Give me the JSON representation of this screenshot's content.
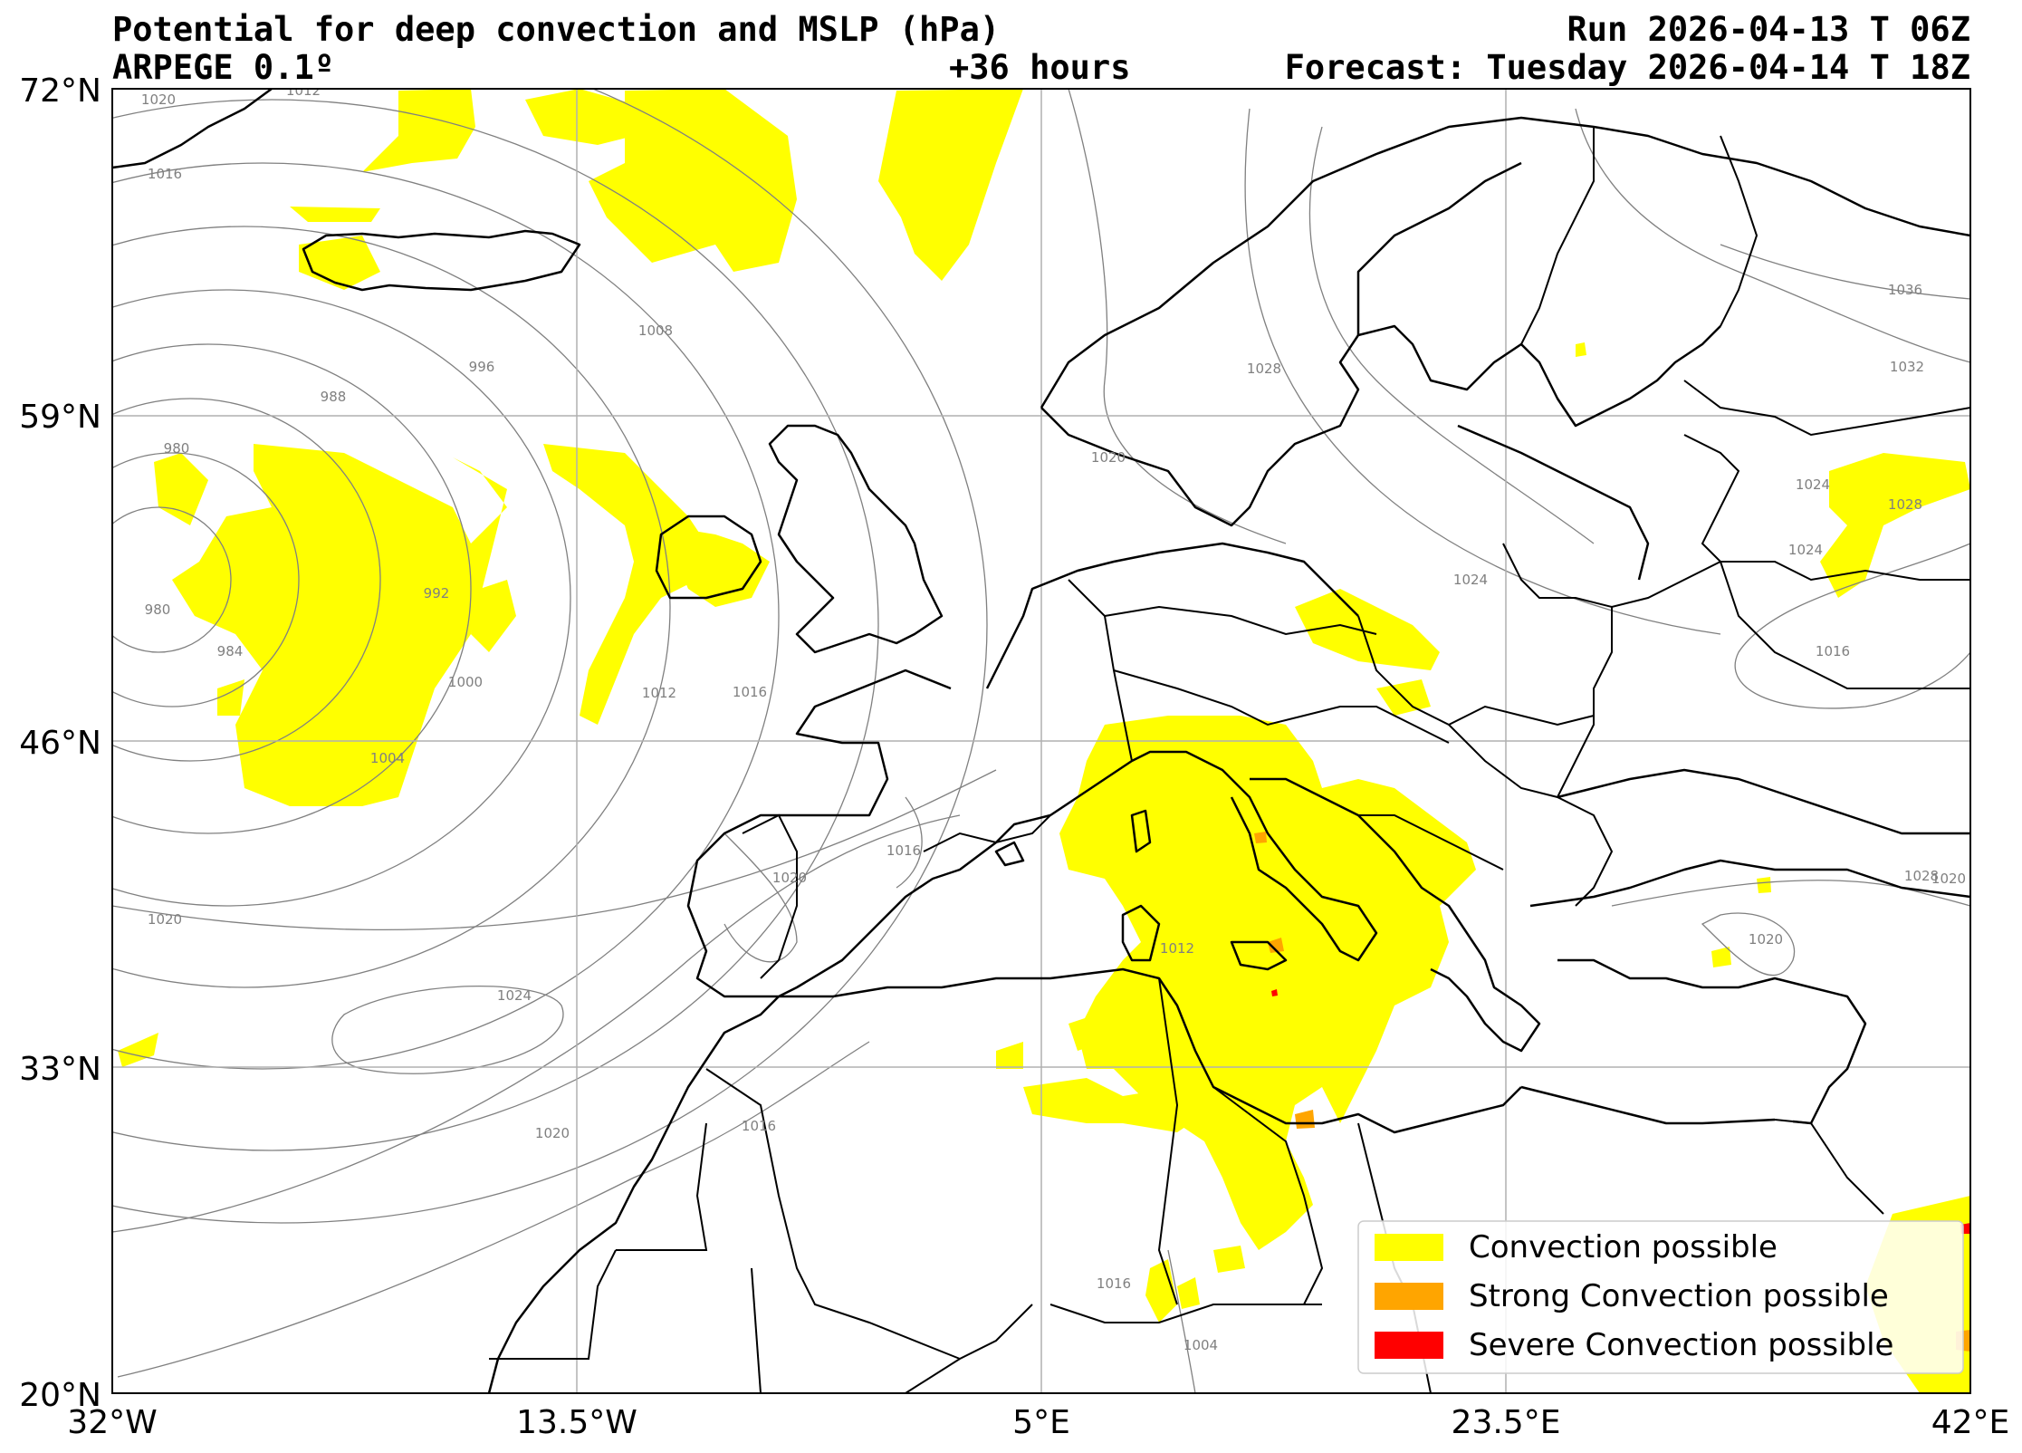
{
  "header": {
    "title_left": "Potential for deep convection and MSLP (hPa)",
    "subtitle_left": "ARPEGE 0.1º",
    "forecast_hours": "+36 hours",
    "run": "Run 2026-04-13 T 06Z",
    "forecast": "Forecast: Tuesday 2026-04-14 T 18Z"
  },
  "map": {
    "lat_ticks": [
      "72°N",
      "59°N",
      "46°N",
      "33°N",
      "20°N"
    ],
    "lon_ticks": [
      "32°W",
      "13.5°W",
      "5°E",
      "23.5°E",
      "42°E"
    ],
    "isobar_labels": [
      "1020",
      "1016",
      "1012",
      "980",
      "988",
      "996",
      "1008",
      "980",
      "984",
      "992",
      "1000",
      "1004",
      "1012",
      "1016",
      "1016",
      "1020",
      "1020",
      "1024",
      "1020",
      "1016",
      "1016",
      "1028",
      "1020",
      "1024",
      "1036",
      "1032",
      "1024",
      "1028",
      "1024",
      "1016",
      "1020",
      "1028",
      "1020",
      "1012",
      "1004"
    ],
    "colors": {
      "convection": "#ffff00",
      "strong": "#ffa500",
      "severe": "#ff0000",
      "coast": "#000000",
      "isobar": "#808080",
      "grid": "#b0b0b0"
    }
  },
  "legend": {
    "items": [
      {
        "label": "Convection possible",
        "color": "#ffff00"
      },
      {
        "label": "Strong Convection possible",
        "color": "#ffa500"
      },
      {
        "label": "Severe Convection possible",
        "color": "#ff0000"
      }
    ]
  }
}
